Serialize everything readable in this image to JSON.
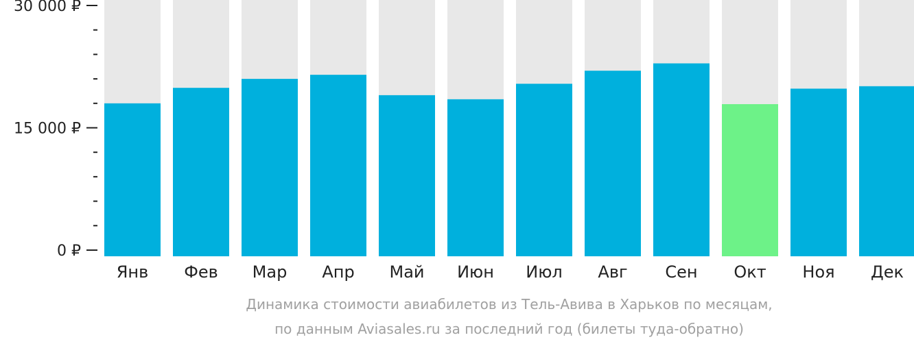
{
  "chart_data": {
    "type": "bar",
    "categories": [
      "Янв",
      "Фев",
      "Мар",
      "Апр",
      "Май",
      "Июн",
      "Июл",
      "Авг",
      "Сен",
      "Окт",
      "Ноя",
      "Дек"
    ],
    "values": [
      18000,
      19900,
      21000,
      21500,
      19000,
      18500,
      20400,
      22000,
      22900,
      17900,
      19800,
      20100
    ],
    "highlight_index": 9,
    "ylim": [
      0,
      30000
    ],
    "yticks": [
      {
        "value": 0,
        "label": "0 ₽"
      },
      {
        "value": 15000,
        "label": "15 000 ₽"
      },
      {
        "value": 30000,
        "label": "30 000 ₽"
      }
    ],
    "minor_ytick_step": 3000,
    "grid": false,
    "colors": {
      "bar": "#00b0dd",
      "highlight": "#6df288",
      "background_column": "#e8e8e8",
      "axis": "#222222"
    }
  },
  "caption": {
    "line1": "Динамика стоимости авиабилетов из Тель-Авива в Харьков по месяцам,",
    "line2": "по данным Aviasales.ru за последний год (билеты туда-обратно)"
  }
}
